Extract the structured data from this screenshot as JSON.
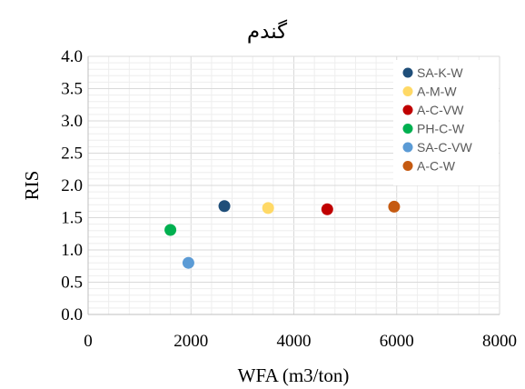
{
  "chart_data": {
    "type": "scatter",
    "title": "گندم",
    "xlabel": "WFA (m3/ton)",
    "ylabel": "RIS",
    "xlim": [
      0,
      8000
    ],
    "ylim": [
      0,
      4
    ],
    "x_ticks": [
      "0",
      "2000",
      "4000",
      "6000",
      "8000"
    ],
    "y_ticks": [
      "0.0",
      "0.5",
      "1.0",
      "1.5",
      "2.0",
      "2.5",
      "3.0",
      "3.5",
      "4.0"
    ],
    "grid": true,
    "legend_position": "top-right",
    "series": [
      {
        "name": "SA-K-W",
        "color": "#1f4e79",
        "x": [
          2650
        ],
        "y": [
          1.68
        ]
      },
      {
        "name": "A-M-W",
        "color": "#ffd966",
        "x": [
          3500
        ],
        "y": [
          1.65
        ]
      },
      {
        "name": "A-C-VW",
        "color": "#c00000",
        "x": [
          4650
        ],
        "y": [
          1.63
        ]
      },
      {
        "name": "PH-C-W",
        "color": "#00b050",
        "x": [
          1600
        ],
        "y": [
          1.31
        ]
      },
      {
        "name": "SA-C-VW",
        "color": "#5b9bd5",
        "x": [
          1950
        ],
        "y": [
          0.8
        ]
      },
      {
        "name": "A-C-W",
        "color": "#c55a11",
        "x": [
          5950
        ],
        "y": [
          1.67
        ]
      }
    ]
  }
}
